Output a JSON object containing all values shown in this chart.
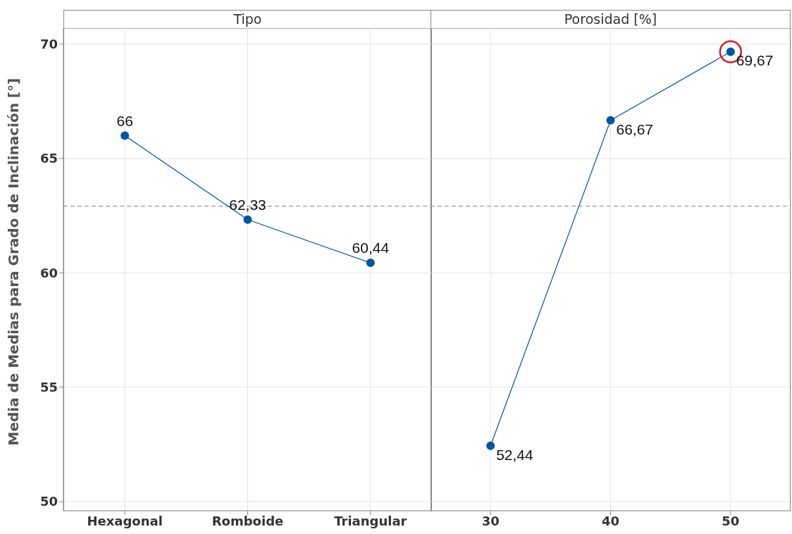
{
  "chart_data": [
    {
      "type": "line",
      "title": "Tipo",
      "ylabel": "Media de Medias para Grado de Inclinación [°]",
      "categories": [
        "Hexagonal",
        "Romboide",
        "Triangular"
      ],
      "series": [
        {
          "color": "#0055a5",
          "values": [
            66,
            62.33,
            60.44
          ],
          "value_labels": [
            "66",
            "62,33",
            "60,44"
          ]
        }
      ],
      "ylim": [
        49.6,
        70.7
      ],
      "yticks": [
        50,
        55,
        60,
        65,
        70
      ],
      "grid": true,
      "marker": "circle",
      "ref_lines": [
        {
          "axis": "y",
          "value": 62.92,
          "color": "#999999",
          "line_style": "dashed"
        }
      ]
    },
    {
      "type": "line",
      "title": "Porosidad [%]",
      "categories": [
        "30",
        "40",
        "50"
      ],
      "series": [
        {
          "color": "#0055a5",
          "values": [
            52.44,
            66.67,
            69.67
          ],
          "value_labels": [
            "52,44",
            "66,67",
            "69,67"
          ]
        }
      ],
      "ylim": [
        49.6,
        70.7
      ],
      "yticks": [
        50,
        55,
        60,
        65,
        70
      ],
      "grid": true,
      "marker": "circle",
      "tick_labels": "x",
      "ref_lines": [
        {
          "axis": "y",
          "value": 62.92,
          "color": "#999999",
          "line_style": "dashed"
        }
      ]
    }
  ]
}
